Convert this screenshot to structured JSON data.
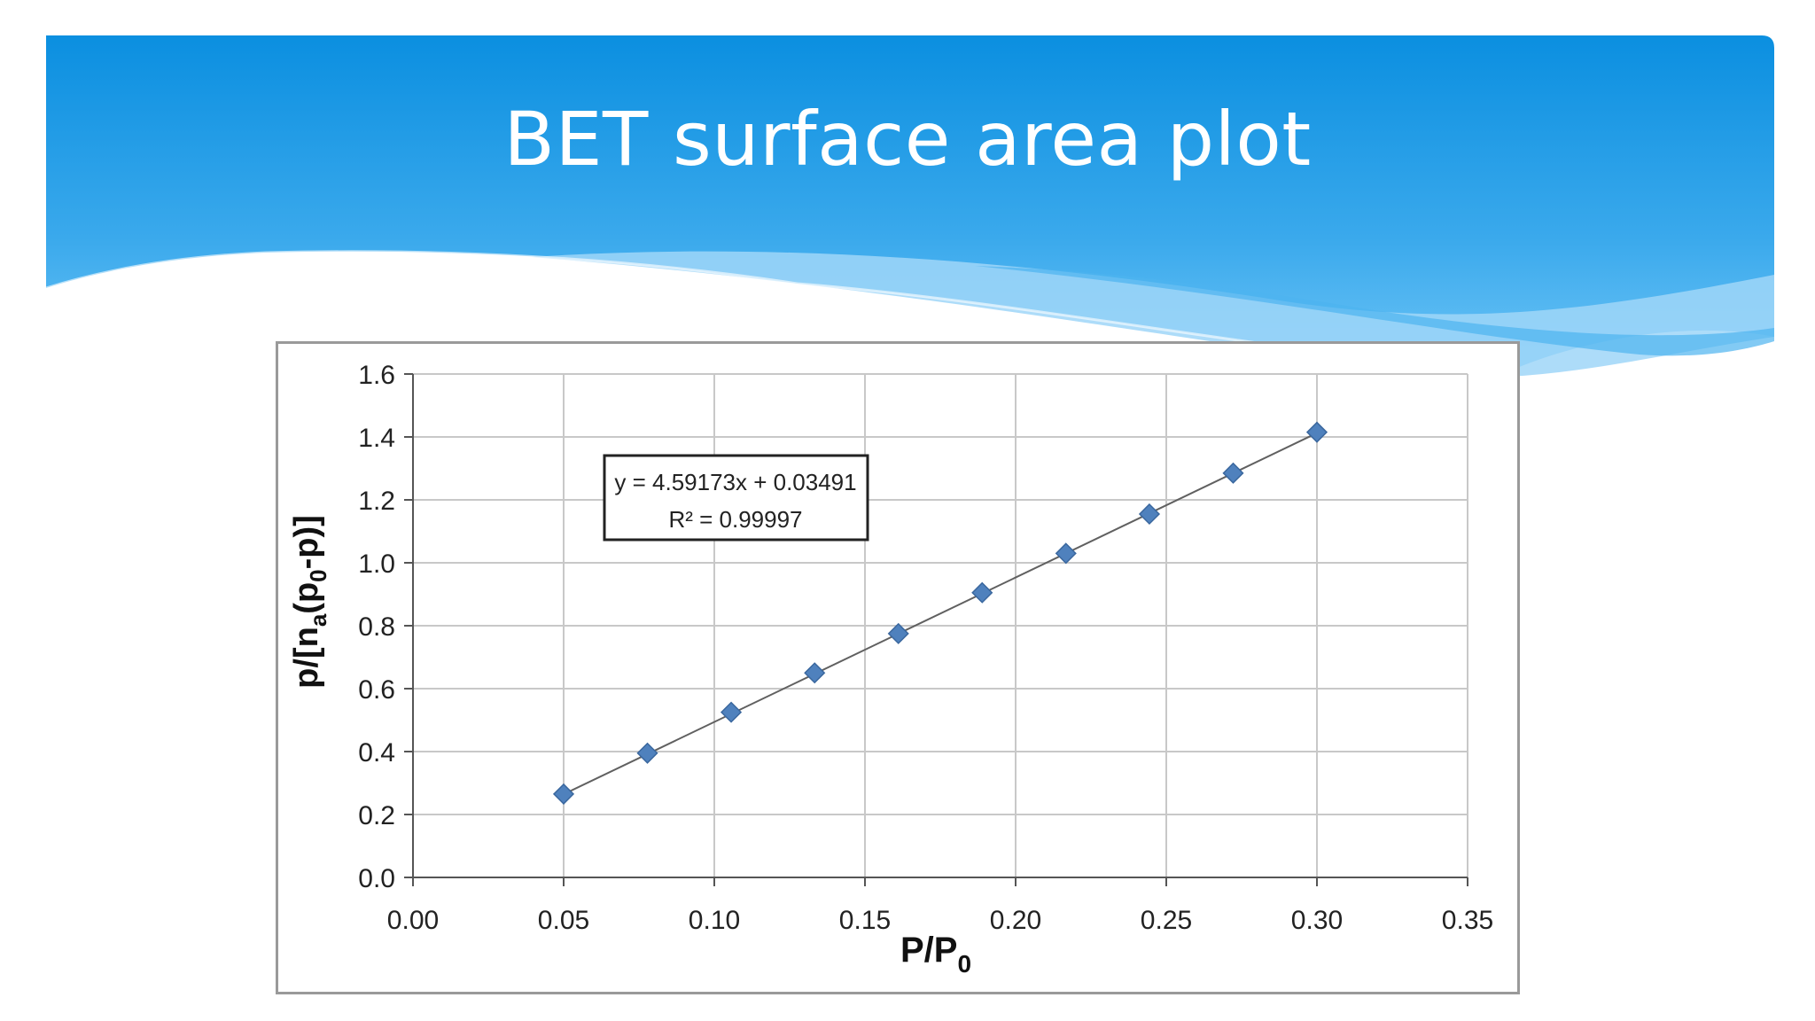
{
  "slide": {
    "title": "BET surface area plot",
    "colors": {
      "header_blue": "#0b8fe0",
      "header_light": "#5fc0f5",
      "marker": "#4f81bd"
    }
  },
  "chart_data": {
    "type": "scatter",
    "title": "",
    "xlabel": "P/P",
    "xlabel_sub": "0",
    "ylabel_parts": {
      "p1": "p/[n",
      "sub1": "a",
      "p2": "(p",
      "sub2": "0",
      "p3": "-p)]"
    },
    "xlim": [
      0.0,
      0.35
    ],
    "ylim": [
      0.0,
      1.6
    ],
    "xticks": [
      "0.00",
      "0.05",
      "0.10",
      "0.15",
      "0.20",
      "0.25",
      "0.30",
      "0.35"
    ],
    "yticks": [
      "0.0",
      "0.2",
      "0.4",
      "0.6",
      "0.8",
      "1.0",
      "1.2",
      "1.4",
      "1.6"
    ],
    "grid": true,
    "legend": "none",
    "series": [
      {
        "x": [
          0.05,
          0.0778,
          0.1056,
          0.1333,
          0.1611,
          0.1889,
          0.2167,
          0.2444,
          0.2722,
          0.3
        ],
        "y": [
          0.265,
          0.395,
          0.525,
          0.65,
          0.775,
          0.905,
          1.03,
          1.155,
          1.285,
          1.415
        ],
        "marker": "diamond",
        "color": "#4f81bd"
      }
    ],
    "trendline": {
      "slope": 4.59173,
      "intercept": 0.03491,
      "x_range": [
        0.05,
        0.3
      ],
      "equation": "y = 4.59173x + 0.03491",
      "r2_label": "R² = 0.99997"
    }
  }
}
